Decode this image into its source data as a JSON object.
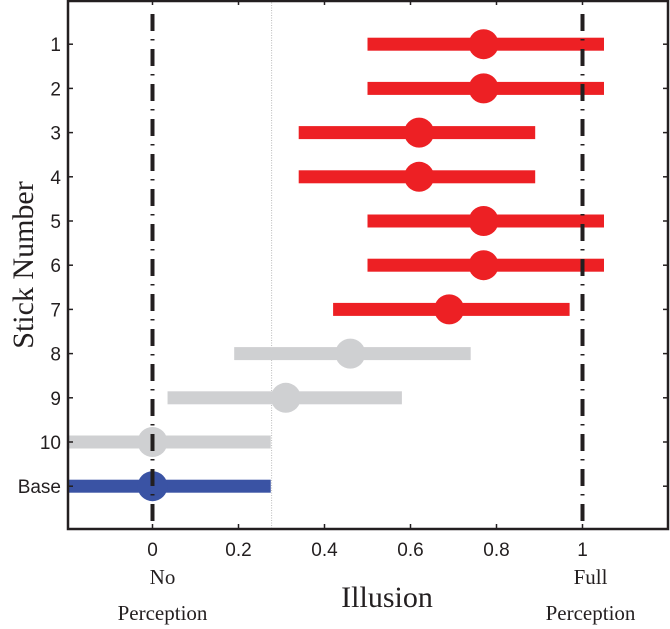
{
  "chart_data": {
    "type": "scatter",
    "subtype": "dot-with-horizontal-interval",
    "title": "",
    "xlabel": "Illusion",
    "ylabel": "Stick Number",
    "xlim": [
      -0.2,
      1.2
    ],
    "x_ticks": [
      0,
      0.2,
      0.4,
      0.6,
      0.8,
      1
    ],
    "x_tick_labels": [
      "0",
      "0.2",
      "0.4",
      "0.6",
      "0.8",
      "1"
    ],
    "y_categories": [
      "1",
      "2",
      "3",
      "4",
      "5",
      "6",
      "7",
      "8",
      "9",
      "10",
      "Base"
    ],
    "annotations": [
      {
        "x": 0,
        "text_lines": [
          "No",
          "Perception"
        ]
      },
      {
        "x": 1,
        "text_lines": [
          "Full",
          "Perception"
        ]
      }
    ],
    "reference_lines": [
      {
        "x": 0,
        "style": "dash-dot",
        "color": "#231f20"
      },
      {
        "x": 1,
        "style": "dash-dot",
        "color": "#231f20"
      },
      {
        "x": 0.277,
        "style": "dotted",
        "color": "#bbbbbb"
      }
    ],
    "grid": false,
    "legend": null,
    "colors": {
      "red": "#ed2024",
      "gray": "#cfd0d2",
      "blue": "#3a53a4",
      "axis": "#231f20"
    },
    "series": [
      {
        "label": "1",
        "mean": 0.77,
        "low": 0.5,
        "high": 1.05,
        "color": "#ed2024"
      },
      {
        "label": "2",
        "mean": 0.77,
        "low": 0.5,
        "high": 1.05,
        "color": "#ed2024"
      },
      {
        "label": "3",
        "mean": 0.62,
        "low": 0.34,
        "high": 0.89,
        "color": "#ed2024"
      },
      {
        "label": "4",
        "mean": 0.62,
        "low": 0.34,
        "high": 0.89,
        "color": "#ed2024"
      },
      {
        "label": "5",
        "mean": 0.77,
        "low": 0.5,
        "high": 1.05,
        "color": "#ed2024"
      },
      {
        "label": "6",
        "mean": 0.77,
        "low": 0.5,
        "high": 1.05,
        "color": "#ed2024"
      },
      {
        "label": "7",
        "mean": 0.69,
        "low": 0.42,
        "high": 0.97,
        "color": "#ed2024"
      },
      {
        "label": "8",
        "mean": 0.46,
        "low": 0.19,
        "high": 0.74,
        "color": "#cfd0d2"
      },
      {
        "label": "9",
        "mean": 0.31,
        "low": 0.035,
        "high": 0.58,
        "color": "#cfd0d2"
      },
      {
        "label": "10",
        "mean": 0.0,
        "low": -0.27,
        "high": 0.275,
        "color": "#cfd0d2"
      },
      {
        "label": "Base",
        "mean": 0.0,
        "low": -0.27,
        "high": 0.275,
        "color": "#3a53a4"
      }
    ]
  }
}
